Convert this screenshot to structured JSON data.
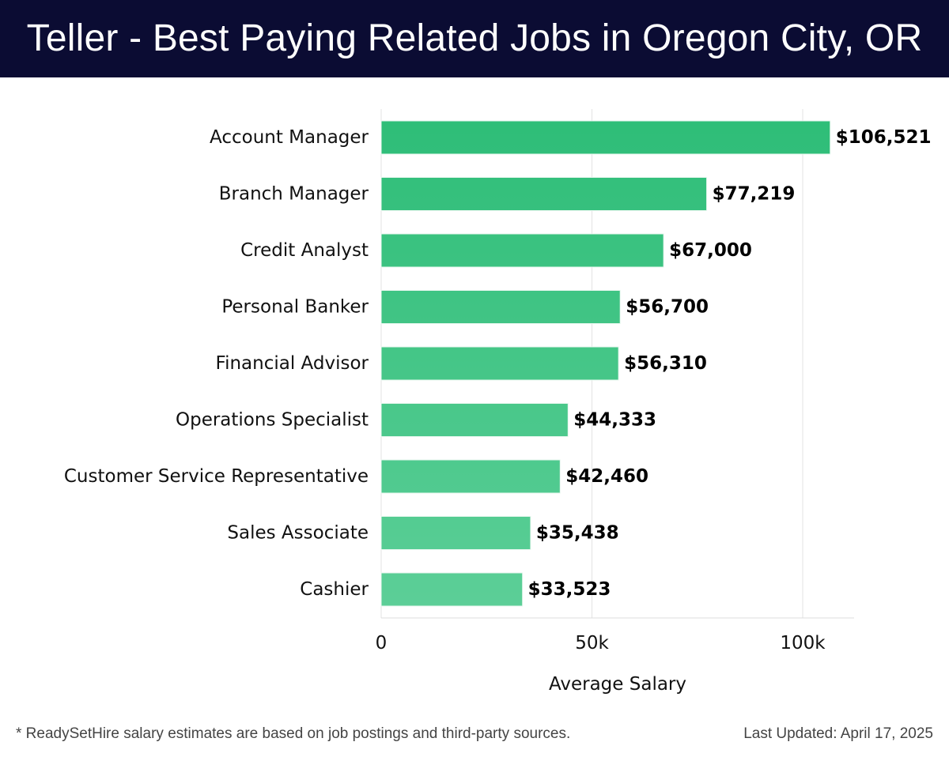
{
  "header": {
    "title": "Teller - Best Paying Related Jobs in Oregon City, OR"
  },
  "colors": {
    "header_bg": "#0b0c33",
    "bar_top": "#2dbd77",
    "bar_bottom": "#5dcf98"
  },
  "chart_data": {
    "type": "bar",
    "orientation": "horizontal",
    "title": "Teller - Best Paying Related Jobs in Oregon City, OR",
    "xlabel": "Average Salary",
    "ylabel": "",
    "xlim": [
      0,
      112000
    ],
    "xticks": [
      0,
      50000,
      100000
    ],
    "xtick_labels": [
      "0",
      "50k",
      "100k"
    ],
    "grid": true,
    "categories": [
      "Account Manager",
      "Branch Manager",
      "Credit Analyst",
      "Personal Banker",
      "Financial Advisor",
      "Operations Specialist",
      "Customer Service Representative",
      "Sales Associate",
      "Cashier"
    ],
    "values": [
      106521,
      77219,
      67000,
      56700,
      56310,
      44333,
      42460,
      35438,
      33523
    ],
    "value_labels": [
      "$106,521",
      "$77,219",
      "$67,000",
      "$56,700",
      "$56,310",
      "$44,333",
      "$42,460",
      "$35,438",
      "$33,523"
    ]
  },
  "footer": {
    "note": "* ReadySetHire salary estimates are based on job postings and third-party sources.",
    "updated": "Last Updated: April 17, 2025"
  }
}
